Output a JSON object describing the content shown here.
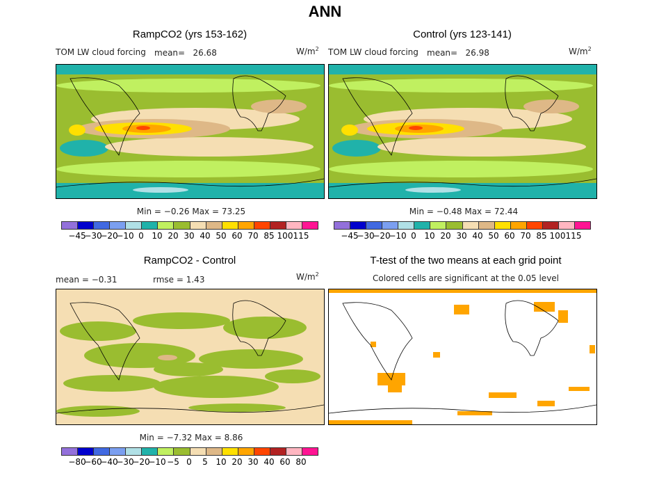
{
  "title": "ANN",
  "panels": [
    {
      "title": "RampCO2 (yrs 153-162)",
      "variable": "TOM LW cloud forcing",
      "mean_label": "mean=",
      "mean": "26.68",
      "units": "W/m",
      "units_sup": "2",
      "stats": "Min =  −0.26 Max =  73.25"
    },
    {
      "title": "Control (yrs 123-141)",
      "variable": "TOM LW cloud forcing",
      "mean_label": "mean=",
      "mean": "26.98",
      "units": "W/m",
      "units_sup": "2",
      "stats": "Min =  −0.48 Max =  72.44"
    },
    {
      "title": "RampCO2 - Control",
      "mean_text": "mean =   −0.31",
      "rmse_text": "rmse =    1.43",
      "units": "W/m",
      "units_sup": "2",
      "stats": "Min =  −7.32 Max =   8.86"
    },
    {
      "title": "T-test of the two means at each grid point",
      "subtitle": "Colored cells are significant at the 0.05 level"
    }
  ],
  "colorbar_colors": [
    "#9370db",
    "#0000cd",
    "#4169e1",
    "#7b9ff0",
    "#b0e0e6",
    "#20b2aa",
    "#c0f060",
    "#9abd30",
    "#f5deb3",
    "#deb887",
    "#ffe000",
    "#ffa500",
    "#ff4500",
    "#b22222",
    "#ffb6c1",
    "#ff1493"
  ],
  "colorbar_labels_main": [
    "−45",
    "−30",
    "−20",
    "−10",
    "0",
    "10",
    "20",
    "30",
    "40",
    "50",
    "60",
    "70",
    "85",
    "100",
    "115"
  ],
  "colorbar_labels_diff": [
    "−80",
    "−60",
    "−40",
    "−30",
    "−20",
    "−10",
    "−5",
    "0",
    "5",
    "10",
    "20",
    "30",
    "40",
    "60",
    "80"
  ],
  "significance_color": "#ffa500"
}
